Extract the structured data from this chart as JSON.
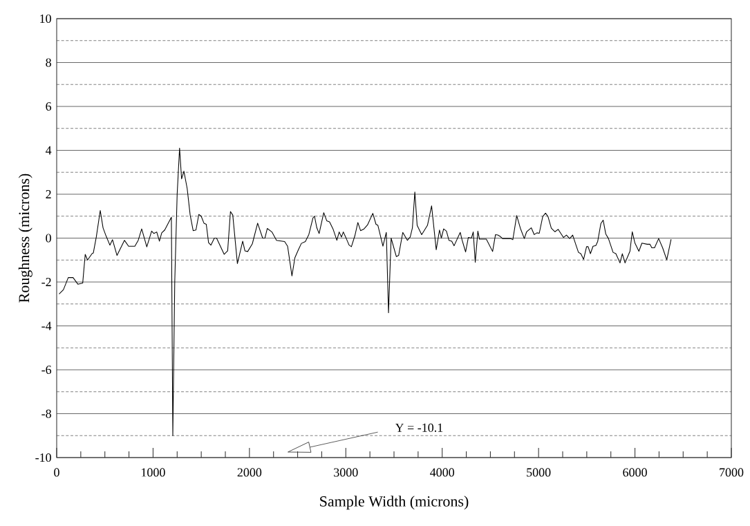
{
  "chart_data": {
    "type": "line",
    "xlabel": "Sample Width (microns)",
    "ylabel": "Roughness (microns)",
    "annotations": [
      "Y = -10.1"
    ],
    "x": [
      25,
      70,
      120,
      170,
      220,
      270,
      296,
      320,
      368,
      380,
      411,
      452,
      481,
      512,
      552,
      579,
      626,
      703,
      746,
      811,
      846,
      882,
      935,
      985,
      1009,
      1038,
      1066,
      1090,
      1121,
      1190,
      1205,
      1225,
      1250,
      1275,
      1296,
      1320,
      1354,
      1385,
      1416,
      1445,
      1475,
      1499,
      1528,
      1552,
      1576,
      1600,
      1636,
      1659,
      1738,
      1774,
      1803,
      1827,
      1875,
      1930,
      1953,
      1982,
      2030,
      2085,
      2137,
      2161,
      2185,
      2233,
      2281,
      2365,
      2396,
      2441,
      2472,
      2508,
      2539,
      2580,
      2616,
      2659,
      2675,
      2699,
      2723,
      2771,
      2802,
      2831,
      2867,
      2907,
      2931,
      2955,
      2974,
      2998,
      3034,
      3058,
      3094,
      3125,
      3153,
      3189,
      3225,
      3280,
      3313,
      3333,
      3385,
      3420,
      3443,
      3470,
      3524,
      3548,
      3591,
      3639,
      3668,
      3691,
      3716,
      3740,
      3787,
      3847,
      3890,
      3914,
      3938,
      3972,
      3991,
      4015,
      4044,
      4070,
      4099,
      4123,
      4187,
      4207,
      4243,
      4271,
      4303,
      4322,
      4343,
      4370,
      4387,
      4458,
      4523,
      4553,
      4577,
      4601,
      4625,
      4709,
      4733,
      4773,
      4811,
      4852,
      4876,
      4924,
      4955,
      4983,
      5007,
      5043,
      5072,
      5098,
      5132,
      5170,
      5203,
      5258,
      5289,
      5323,
      5354,
      5390,
      5414,
      5438,
      5467,
      5498,
      5514,
      5538,
      5565,
      5594,
      5613,
      5646,
      5670,
      5697,
      5725,
      5773,
      5802,
      5845,
      5869,
      5897,
      5948,
      5972,
      6000,
      6041,
      6072,
      6127,
      6156,
      6175,
      6203,
      6246,
      6287,
      6330,
      6375
    ],
    "values": [
      -2.55,
      -2.35,
      -1.8,
      -1.8,
      -2.1,
      -2.05,
      -0.74,
      -1.0,
      -0.7,
      -0.68,
      0.05,
      1.26,
      0.47,
      0.1,
      -0.32,
      -0.07,
      -0.79,
      -0.1,
      -0.37,
      -0.37,
      -0.1,
      0.42,
      -0.4,
      0.32,
      0.21,
      0.28,
      -0.14,
      0.24,
      0.37,
      0.95,
      -9.0,
      -2.0,
      2.0,
      4.1,
      2.7,
      3.05,
      2.26,
      1.05,
      0.34,
      0.37,
      1.08,
      1.0,
      0.68,
      0.63,
      -0.21,
      -0.32,
      0.0,
      0.0,
      -0.74,
      -0.58,
      1.21,
      1.05,
      -1.16,
      -0.14,
      -0.58,
      -0.61,
      -0.26,
      0.68,
      0.0,
      0.0,
      0.44,
      0.28,
      -0.1,
      -0.16,
      -0.37,
      -1.72,
      -0.89,
      -0.53,
      -0.24,
      -0.16,
      0.16,
      0.92,
      1.0,
      0.47,
      0.21,
      1.16,
      0.79,
      0.74,
      0.42,
      -0.1,
      0.28,
      0.05,
      0.28,
      0.05,
      -0.32,
      -0.39,
      0.11,
      0.71,
      0.34,
      0.42,
      0.6,
      1.13,
      0.63,
      0.58,
      -0.37,
      0.26,
      -3.4,
      0.0,
      -0.84,
      -0.79,
      0.26,
      -0.1,
      0.05,
      0.47,
      2.1,
      0.58,
      0.16,
      0.58,
      1.47,
      0.47,
      -0.53,
      0.37,
      0.0,
      0.42,
      0.32,
      -0.1,
      -0.14,
      -0.35,
      0.26,
      -0.1,
      -0.63,
      0.03,
      0.0,
      0.28,
      -1.1,
      0.32,
      -0.05,
      -0.05,
      -0.61,
      0.16,
      0.14,
      0.08,
      -0.02,
      -0.02,
      -0.07,
      1.03,
      0.45,
      -0.02,
      0.29,
      0.47,
      0.16,
      0.24,
      0.22,
      0.98,
      1.14,
      0.98,
      0.45,
      0.29,
      0.4,
      0.03,
      0.14,
      -0.02,
      0.14,
      -0.34,
      -0.65,
      -0.71,
      -0.97,
      -0.39,
      -0.39,
      -0.71,
      -0.37,
      -0.34,
      -0.16,
      0.66,
      0.82,
      0.19,
      -0.02,
      -0.65,
      -0.71,
      -1.13,
      -0.71,
      -1.13,
      -0.6,
      0.29,
      -0.23,
      -0.6,
      -0.23,
      -0.28,
      -0.28,
      -0.44,
      -0.44,
      -0.02,
      -0.44,
      -0.99,
      -0.05
    ],
    "color": "#000000",
    "line_style": "solid",
    "xlim": [
      0,
      7000
    ],
    "ylim": [
      -10,
      10
    ],
    "xticks": [
      0,
      1000,
      2000,
      3000,
      4000,
      5000,
      6000,
      7000
    ],
    "yticks": [
      -10,
      -8,
      -6,
      -4,
      -2,
      0,
      2,
      4,
      6,
      8,
      10
    ],
    "grid": "y"
  }
}
